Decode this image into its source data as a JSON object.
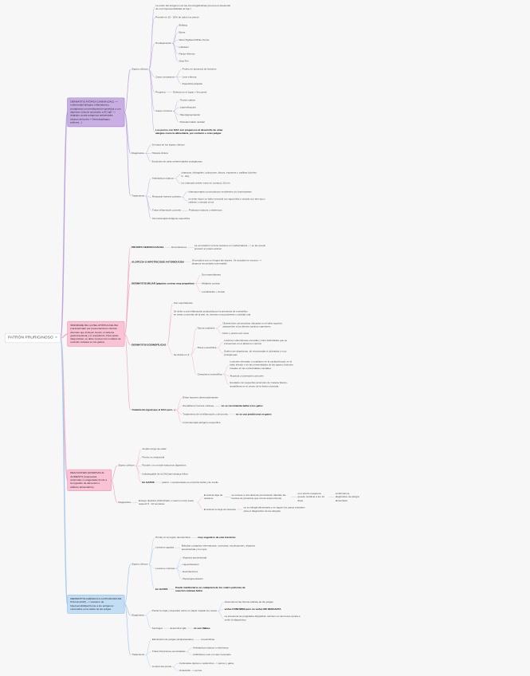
{
  "app": {
    "background": "#f7f7f8"
  },
  "icons": {
    "add_branch": "⊕"
  },
  "palette": {
    "purple": {
      "line": "#bfa8e0",
      "fill": "#c9aee3",
      "border": "#a78bd4"
    },
    "pink": {
      "line": "#f4afc9",
      "fill": "#f9c3d5",
      "border": "#ef9dbd"
    },
    "blue": {
      "line": "#a9cdec",
      "fill": "#c3def4",
      "border": "#93c3ea"
    }
  },
  "tree": {
    "id": "patron-pruriginoso",
    "text": "PATRÓN PRURIGINOSO",
    "type": "root",
    "children": [
      {
        "id": "dermatitis-atopica-canina",
        "type": "topic",
        "color": "purple",
        "text": "DERMATITIS ATÓPICA CANINA (DAC) --> enfermedad alérgica, inflamatoria y pruriginosa con predisposición genética y con aspectos clínicos asociados a AC IgE --> dirigidos contra antígenos ambientales (ácaros del polvo = Dermatophagus, pólenes...)",
        "children": [
          {
            "text": "Signos clínicos",
            "children": [
              {
                "text": "La unión del antígeno con las inmunoglobulinas provoca el desarrollo de una hipersensibilidad de tipo I"
              },
              {
                "text": "Prevale en 10 - 15% de todos los perros"
              },
              {
                "text": "Predisposición",
                "children": [
                  {
                    "text": "Bulldog"
                  },
                  {
                    "text": "Bóxer"
                  },
                  {
                    "text": "West Highland White Terrier"
                  },
                  {
                    "text": "Labrador"
                  },
                  {
                    "text": "Pastor Alemán"
                  },
                  {
                    "text": "Shar-Pei"
                  }
                ]
              },
              {
                "text": "Casos tempranos",
                "children": [
                  {
                    "text": "Prurito en ausencia de lesiones"
                  },
                  {
                    "text": "Leve eritema"
                  },
                  {
                    "text": "Pequeñas pápulas"
                  }
                ]
              },
              {
                "text": "Progresa",
                "children": [
                  {
                    "text": "Eritema es el signo + frecuente"
                  }
                ]
              },
              {
                "text": "Casos crónicos",
                "children": [
                  {
                    "text": "Tinción salivar"
                  },
                  {
                    "text": "Liquenificación"
                  },
                  {
                    "text": "Hiperpigmentación"
                  },
                  {
                    "text": "Pododermatitis nodular"
                  }
                ]
              },
              {
                "text": "Los perros con DAC son propensos al desarrollo de otras alergias como la alimentaria, por contacto o a las pulgas",
                "bold": true
              }
            ]
          },
          {
            "text": "Diagnóstico",
            "children": [
              {
                "text": "Se basa en los signos clínicos"
              },
              {
                "text": "Historia clínica"
              },
              {
                "text": "Exclusión de otras enfermedades pruriginosas"
              }
            ]
          },
          {
            "text": "Tratamiento",
            "children": [
              {
                "text": "Antisépticos tópicos",
                "children": [
                  {
                    "text": "champús, hidrogeles, soluciones, discos, espumas o toallitas (clorhex 3 - 4%)"
                  },
                  {
                    "text": "los champús deben estar en contacto 10 min"
                  }
                ]
              },
              {
                "text": "Restaurar barrera cutánea",
                "children": [
                  {
                    "text": "champuterapia con productos emolientes y/o humectantes"
                  },
                  {
                    "text": "se debe hacer un baño semanal con agua tibia y secado con aire poco caliente o secado al sol"
                  }
                ]
              },
              {
                "text": "Tratar inflamación y prurito",
                "children": [
                  {
                    "text": "Productos tópicos y sistémicos"
                  }
                ]
              },
              {
                "text": "Inmunoterapia antígeno-específica"
              }
            ]
          }
        ]
      },
      {
        "id": "sindrome-piel-atopica-felina",
        "type": "topic",
        "color": "pink",
        "text": "SÍNDROME DE LA PIEL ATÓPICA FELINA (caracterizado por presentaciones clínicas diversas que incluyen la piel, el sistema gastrointestinal y el respiratorio. Para poder diagnosticar, se debe conocer los modelos de reacción cutánea en los gatos)",
        "children": [
          {
            "text": "PRURITO CERVICO-FACIAL",
            "bold": true,
            "children": [
              {
                "text": "Excoriaciones",
                "children": [
                  {
                    "text": "La excoriación sí tiene lesiones en cuello/cabeza --> se las puede producir el propio animal"
                  }
                ]
              }
            ]
          },
          {
            "text": "ALOPECIA O HIPOTRICOSIS AUTOINDUCIDA",
            "bold": true,
            "children": [
              {
                "text": "Se produce por su lengua tan áspera. Se acicalan en exceso --> alopecia secundaria a dermatitis"
              }
            ]
          },
          {
            "text": "DERMATITIS MILIAR (pápulas costras muy pequeñas)",
            "bold": true,
            "children": [
              {
                "text": "Son espontáneas"
              },
              {
                "text": "Múltiples costras"
              },
              {
                "text": "Localización + dorsal"
              }
            ]
          },
          {
            "text": "DERMATITIS EOSINOFÍLICAS",
            "bold": true,
            "children": [
              {
                "text": "Son espontáneas"
              },
              {
                "text": "Se debe a una inflamación producida por la presencia de eosinófilos en áreas concretas de la piel, en uniones mucocutáneas y cavidad oral"
              },
              {
                "text": "Se divide en 3:",
                "children": [
                  {
                    "text": "Úlcera indolente",
                    "children": [
                      {
                        "text": "Úlceras bien circunscritas ubicadas en el labio superior adyacentes a los dientes caninos superiores"
                      },
                      {
                        "text": "Dolor y prurito son raros"
                      }
                    ]
                  },
                  {
                    "text": "Placa eosinofílica",
                    "children": [
                      {
                        "text": "Lesiones eritematosas elevadas y bien delimitadas que se encuentran en el abdomen ventral"
                      },
                      {
                        "text": "Suelen ser alopécicas, de erosionadas a ulceradas y muy pruriginosas"
                      }
                    ]
                  },
                  {
                    "text": "Granuloma eosinofílico",
                    "children": [
                      {
                        "text": "Lesiones elevadas o nodulares en la cavidad bucal, en el labio inferior o en las extremidades de las patas y lesiones lineales en las extremidades caudales"
                      },
                      {
                        "text": "Alopecia y ulceración comunes"
                      },
                      {
                        "text": "Exudado con pequeños acúmulos de materia blanco-amarillenta en el centro de la lesión ulcerada"
                      }
                    ]
                  }
                ]
              }
            ]
          },
          {
            "text": "Tratamiento (igual que el DAC pero...)",
            "bold": true,
            "children": [
              {
                "text": "Evitar factores desencadenantes"
              },
              {
                "text": "Restablecer barrera cutánea",
                "children": [
                  {
                    "text": "no se recomienda bañar a los gatos",
                    "bold": true
                  }
                ]
              },
              {
                "text": "Tratamiento de la inflamación y del prurito",
                "children": [
                  {
                    "text": "no se usa prednisona en gatos",
                    "bold": true
                  }
                ]
              },
              {
                "text": "Inmunoterapia antígeno-específica"
              }
            ]
          }
        ]
      },
      {
        "id": "reacciones-adversas-alimento",
        "type": "topic",
        "color": "pink",
        "text": "REACCIONES ADVERSAS AL ALIMENTO (respuestas anormales o exageradas frente a la ingestión de alimentos o aditivos alimentarios)",
        "children": [
          {
            "text": "Signos clínicos",
            "children": [
              {
                "text": "Amplio rango de edad"
              },
              {
                "text": "Prurito no estacional"
              },
              {
                "text": "Pueden o no existir trastornos digestivos"
              },
              {
                "text": "Indistinguible de la DAC/piel atópica felina"
              },
              {
                "text": "En GATOS",
                "bold": true,
                "children": [
                  {
                    "text": "patrón + representado es el prurito facial y de cuello"
                  }
                ]
              }
            ]
          },
          {
            "text": "Diagnóstico",
            "children": [
              {
                "text": "Ensayo dietético (hidrolizado o casero novel) suele requerir 8 - 10 semanas",
                "children": [
                  {
                    "text": "El animal deja de rascarse",
                    "children": [
                      {
                        "text": "se somete a una dieta de provocación dándole las fuentes de proteínas que comía anteriormente",
                        "children": [
                          {
                            "text": "si el prurito reaparece (puede recidivar a los 14 días)",
                            "children": [
                              {
                                "text": "confirmamos diagnóstico de alergia alimentaria"
                              }
                            ]
                          }
                        ]
                      }
                    ]
                  },
                  {
                    "text": "El animal no deja de rascarse",
                    "children": [
                      {
                        "text": "no es alergia alimentaria y se siguen los pasos restantes para el diagnóstico de las alergias"
                      }
                    ]
                  }
                ]
              }
            ]
          }
        ]
      },
      {
        "id": "dermatitis-alergica-picadura-pulga",
        "type": "topic",
        "color": "blue",
        "text": "DERMATITIS ALÉRGICA A LA PICADURA DE PULGA (DAP) --> trastorno de hipersensibilidad frente a los antígenos contenidos en la saliva de las pulgas",
        "children": [
          {
            "text": "Signos clínicos",
            "children": [
              {
                "text": "Prurito en la región dorsolumbar",
                "children": [
                  {
                    "text": "muy sugestivo de este trastorno",
                    "bold": true
                  }
                ]
              },
              {
                "text": "Lesiones agudas",
                "children": [
                  {
                    "text": "Máculas y pápulas eritematosas, costrosas, escoriaciones, alopecia autoinducida y hot spot"
                  }
                ]
              },
              {
                "text": "Lesiones crónicas",
                "children": [
                  {
                    "text": "Alopecia autoinducida"
                  },
                  {
                    "text": "Liquenificación"
                  },
                  {
                    "text": "Escoriaciones"
                  },
                  {
                    "text": "Hiperpigmentación"
                  }
                ]
              },
              {
                "text": "En GATOS",
                "bold": true,
                "children": [
                  {
                    "text": "Puede manifestarse en cualquiera de los cuatro patrones de reacción cutánea felina",
                    "bold": true
                  }
                ]
              }
            ]
          },
          {
            "text": "Diagnóstico",
            "children": [
              {
                "text": "Peinar la capa y depositar sobre un papel mojado los restos",
                "children": [
                  {
                    "text": "observamos las formas adultas de las pulgas"
                  },
                  {
                    "text": "verlas CONFIRMA pero no verlas NO DESCARTA",
                    "bold": true
                  },
                  {
                    "text": "La presencia de proglótides Dipylidium caninum en las heces ayuda a emitir el diagnóstico"
                  }
                ]
              },
              {
                "text": "Serología",
                "children": [
                  {
                    "text": "determinar IgE",
                    "children": [
                      {
                        "text": "no son fiables",
                        "bold": true
                      }
                    ]
                  }
                ]
              }
            ]
          },
          {
            "text": "Tratamiento",
            "children": [
              {
                "text": "Eliminación de pulgas (antiparasitario)",
                "children": [
                  {
                    "text": "isoxazolinas"
                  }
                ]
              },
              {
                "text": "Tratar infecciones secundarias",
                "children": [
                  {
                    "text": "Antisépticos tópicos o sistémicos"
                  },
                  {
                    "text": "Antibióticos solo en caso necesario"
                  }
                ]
              },
              {
                "text": "Control del prurito",
                "children": [
                  {
                    "text": "Corticoides tópicos o sistémicos --> perros y gatos"
                  },
                  {
                    "text": "Oclacitinib --> perros"
                  }
                ]
              }
            ]
          }
        ]
      }
    ]
  }
}
